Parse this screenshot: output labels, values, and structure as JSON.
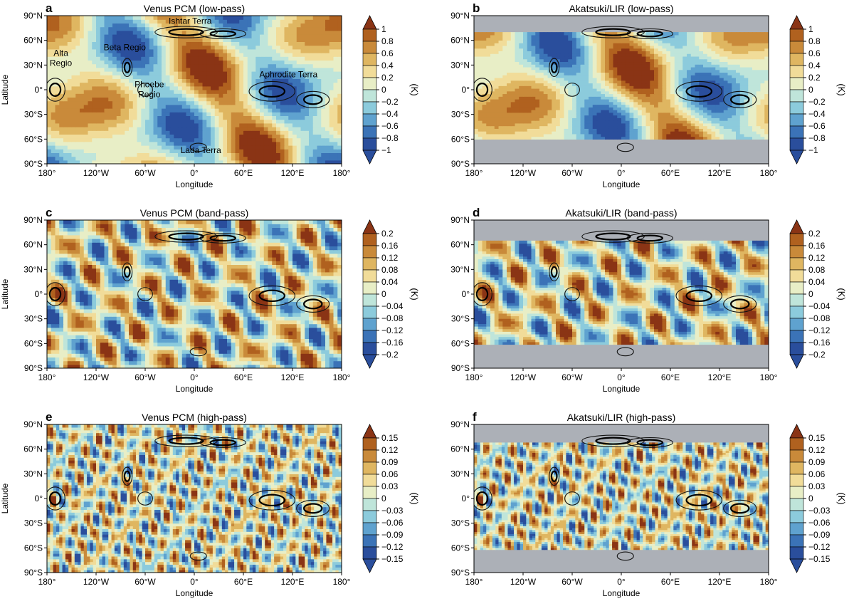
{
  "chart_data": [
    {
      "type": "heatmap",
      "letter": "a",
      "title": "Venus PCM (low-pass)",
      "xlabel": "Longitude",
      "ylabel": "Latitude",
      "colorbar_label": "(K)",
      "xticks": [
        "180°",
        "120°W",
        "60°W",
        "0°",
        "60°E",
        "120°E",
        "180°"
      ],
      "yticks": [
        "90°N",
        "60°N",
        "30°N",
        "0°",
        "30°S",
        "60°S",
        "90°S"
      ],
      "xlim": [
        -180,
        180
      ],
      "ylim": [
        -90,
        90
      ],
      "colorbar_ticks": [
        "1",
        "0.8",
        "0.6",
        "0.4",
        "0.2",
        "0",
        "−0.2",
        "−0.4",
        "−0.6",
        "−0.8",
        "−1"
      ],
      "data_lat_range": [
        -90,
        90
      ],
      "pattern": "low",
      "annotations": [
        {
          "text": "Ishtar Terra",
          "lon": -5,
          "lat": 80
        },
        {
          "text": "Beta Regio",
          "lon": -85,
          "lat": 48
        },
        {
          "text": "Alta",
          "lon": -163,
          "lat": 41
        },
        {
          "text": "Regio",
          "lon": -163,
          "lat": 29
        },
        {
          "text": "Aphrodite Terra",
          "lon": 115,
          "lat": 15
        },
        {
          "text": "Phoebe",
          "lon": -55,
          "lat": 3
        },
        {
          "text": "Regio",
          "lon": -55,
          "lat": -9
        },
        {
          "text": "Lada Terra",
          "lon": 8,
          "lat": -77
        }
      ]
    },
    {
      "type": "heatmap",
      "letter": "b",
      "title": "Akatsuki/LIR (low-pass)",
      "xlabel": "Longitude",
      "ylabel": "",
      "colorbar_label": "(K)",
      "xticks": [
        "180°",
        "120°W",
        "60°W",
        "0°",
        "60°E",
        "120°E",
        "180°"
      ],
      "yticks": [
        "90°N",
        "60°N",
        "30°N",
        "0°",
        "30°S",
        "60°S",
        "90°S"
      ],
      "xlim": [
        -180,
        180
      ],
      "ylim": [
        -90,
        90
      ],
      "colorbar_ticks": [
        "1",
        "0.8",
        "0.6",
        "0.4",
        "0.2",
        "0",
        "−0.2",
        "−0.4",
        "−0.6",
        "−0.8",
        "−1"
      ],
      "data_lat_range": [
        -60,
        70
      ],
      "pattern": "low",
      "annotations": []
    },
    {
      "type": "heatmap",
      "letter": "c",
      "title": "Venus PCM (band-pass)",
      "xlabel": "Longitude",
      "ylabel": "Latitude",
      "colorbar_label": "(K)",
      "xticks": [
        "180°",
        "120°W",
        "60°W",
        "0°",
        "60°E",
        "120°E",
        "180°"
      ],
      "yticks": [
        "90°N",
        "60°N",
        "30°N",
        "0°",
        "30°S",
        "60°S",
        "90°S"
      ],
      "xlim": [
        -180,
        180
      ],
      "ylim": [
        -90,
        90
      ],
      "colorbar_ticks": [
        "0.2",
        "0.16",
        "0.12",
        "0.08",
        "0.04",
        "0",
        "−0.04",
        "−0.08",
        "−0.12",
        "−0.16",
        "−0.2"
      ],
      "data_lat_range": [
        -90,
        90
      ],
      "pattern": "band",
      "annotations": []
    },
    {
      "type": "heatmap",
      "letter": "d",
      "title": "Akatsuki/LIR (band-pass)",
      "xlabel": "Longitude",
      "ylabel": "",
      "colorbar_label": "(K)",
      "xticks": [
        "180°",
        "120°W",
        "60°W",
        "0°",
        "60°E",
        "120°E",
        "180°"
      ],
      "yticks": [
        "90°N",
        "60°N",
        "30°N",
        "0°",
        "30°S",
        "60°S",
        "90°S"
      ],
      "xlim": [
        -180,
        180
      ],
      "ylim": [
        -90,
        90
      ],
      "colorbar_ticks": [
        "0.2",
        "0.16",
        "0.12",
        "0.08",
        "0.04",
        "0",
        "−0.04",
        "−0.08",
        "−0.12",
        "−0.16",
        "−0.2"
      ],
      "data_lat_range": [
        -61,
        65
      ],
      "pattern": "band",
      "annotations": []
    },
    {
      "type": "heatmap",
      "letter": "e",
      "title": "Venus PCM (high-pass)",
      "xlabel": "Longitude",
      "ylabel": "Latitude",
      "colorbar_label": "(K)",
      "xticks": [
        "180°",
        "120°W",
        "60°W",
        "0°",
        "60°E",
        "120°E",
        "180°"
      ],
      "yticks": [
        "90°N",
        "60°N",
        "30°N",
        "0°",
        "30°S",
        "60°S",
        "90°S"
      ],
      "xlim": [
        -180,
        180
      ],
      "ylim": [
        -90,
        90
      ],
      "colorbar_ticks": [
        "0.15",
        "0.12",
        "0.09",
        "0.06",
        "0.03",
        "0",
        "−0.03",
        "−0.06",
        "−0.09",
        "−0.12",
        "−0.15"
      ],
      "data_lat_range": [
        -90,
        90
      ],
      "pattern": "high",
      "annotations": []
    },
    {
      "type": "heatmap",
      "letter": "f",
      "title": "Akatsuki/LIR (high-pass)",
      "xlabel": "Longitude",
      "ylabel": "",
      "colorbar_label": "(K)",
      "xticks": [
        "180°",
        "120°W",
        "60°W",
        "0°",
        "60°E",
        "120°E",
        "180°"
      ],
      "yticks": [
        "90°N",
        "60°N",
        "30°N",
        "0°",
        "30°S",
        "60°S",
        "90°S"
      ],
      "xlim": [
        -180,
        180
      ],
      "ylim": [
        -90,
        90
      ],
      "colorbar_ticks": [
        "0.15",
        "0.12",
        "0.09",
        "0.06",
        "0.03",
        "0",
        "−0.03",
        "−0.06",
        "−0.09",
        "−0.12",
        "−0.15"
      ],
      "data_lat_range": [
        -62,
        68
      ],
      "pattern": "high",
      "annotations": []
    }
  ],
  "palette": [
    "#2a4e9c",
    "#3b73b7",
    "#5fa2cf",
    "#8ccbdc",
    "#bfe5da",
    "#e8eec6",
    "#f1dc99",
    "#dfb661",
    "#c98a3a",
    "#b0611f",
    "#8a3415"
  ],
  "mask_color": "#acb0b7",
  "topography": [
    {
      "name": "Ishtar Terra",
      "lon": -10,
      "lat": 70,
      "rlon": 38,
      "rlat": 7,
      "inner": true
    },
    {
      "name": "Ishtar Terra east",
      "lon": 35,
      "lat": 68,
      "rlon": 28,
      "rlat": 6,
      "inner": true
    },
    {
      "name": "Beta Regio",
      "lon": -82,
      "lat": 27,
      "rlon": 6,
      "rlat": 11,
      "inner": true
    },
    {
      "name": "Alta Regio",
      "lon": -170,
      "lat": 0,
      "rlon": 12,
      "rlat": 14,
      "inner": true
    },
    {
      "name": "Phoebe Regio",
      "lon": -60,
      "lat": 0,
      "rlon": 9,
      "rlat": 8,
      "inner": false
    },
    {
      "name": "Aphrodite Terra",
      "lon": 95,
      "lat": -2,
      "rlon": 28,
      "rlat": 12,
      "inner": true
    },
    {
      "name": "Aphrodite Terra east",
      "lon": 145,
      "lat": -12,
      "rlon": 20,
      "rlat": 10,
      "inner": true
    },
    {
      "name": "Lada Terra",
      "lon": 5,
      "lat": -70,
      "rlon": 10,
      "rlat": 5,
      "inner": false
    }
  ]
}
